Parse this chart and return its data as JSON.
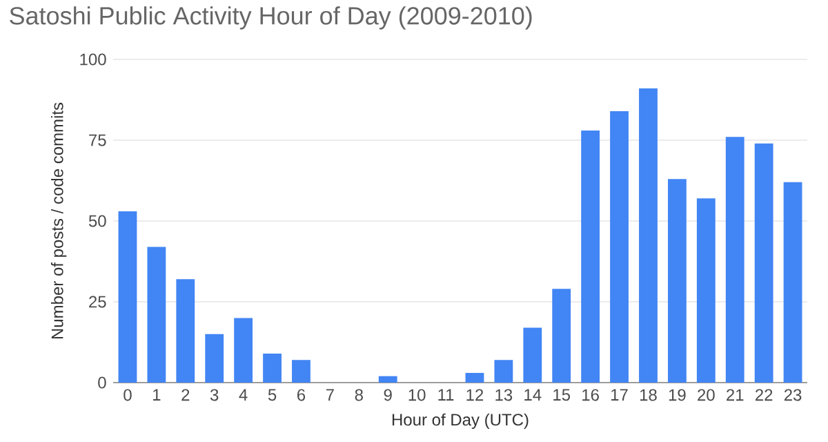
{
  "chart_data": {
    "type": "bar",
    "title": "Satoshi Public Activity Hour of Day (2009-2010)",
    "xlabel": "Hour of Day (UTC)",
    "ylabel": "Number of posts / code commits",
    "categories": [
      "0",
      "1",
      "2",
      "3",
      "4",
      "5",
      "6",
      "7",
      "8",
      "9",
      "10",
      "11",
      "12",
      "13",
      "14",
      "15",
      "16",
      "17",
      "18",
      "19",
      "20",
      "21",
      "22",
      "23"
    ],
    "values": [
      53,
      42,
      32,
      15,
      20,
      9,
      7,
      0,
      0,
      2,
      0,
      0,
      3,
      7,
      17,
      29,
      78,
      84,
      91,
      63,
      57,
      76,
      74,
      62
    ],
    "color": "#4285f4",
    "ylim": [
      0,
      100
    ],
    "yticks": [
      0,
      25,
      50,
      75,
      100
    ],
    "grid": "y"
  }
}
